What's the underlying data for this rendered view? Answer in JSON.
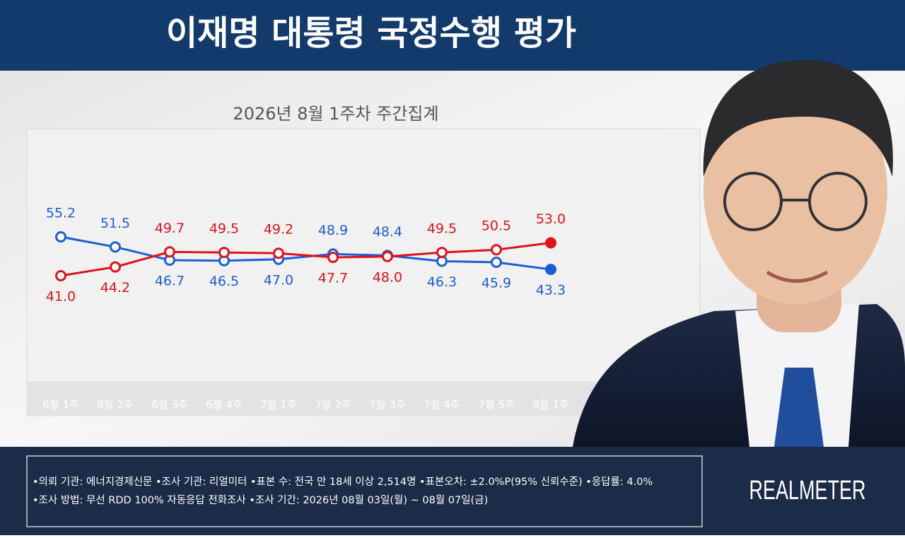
{
  "header": {
    "title": "이재명 대통령 국정수행 평가"
  },
  "chart_data": {
    "type": "line",
    "title": "2026년 8월 1주차 주간집계",
    "categories": [
      "6월 1주",
      "6월 2주",
      "6월 3주",
      "6월 4주",
      "7월 1주",
      "7월 2주",
      "7월 3주",
      "7월 4주",
      "7월 5주",
      "8월 1주"
    ],
    "series": [
      {
        "color": "#1c5fd4",
        "values": [
          55.2,
          51.5,
          46.7,
          46.5,
          47.0,
          48.9,
          48.4,
          46.3,
          45.9,
          43.3
        ],
        "value_labels": [
          "55.2",
          "51.5",
          "46.7",
          "46.5",
          "47.0",
          "48.9",
          "48.4",
          "46.3",
          "45.9",
          "43.3"
        ]
      },
      {
        "color": "#e0121c",
        "values": [
          41.0,
          44.2,
          49.7,
          49.5,
          49.2,
          47.7,
          48.0,
          49.5,
          50.5,
          53.0
        ],
        "value_labels": [
          "41.0",
          "44.2",
          "49.7",
          "49.5",
          "49.2",
          "47.7",
          "48.0",
          "49.5",
          "50.5",
          "53.0"
        ]
      }
    ]
  },
  "footer": {
    "lines": [
      "•의뢰 기관: 에너지경제신문 •조사 기관: 리얼미터 •표본 수: 전국 만 18세 이상 2,514명 •표본오차: ±2.0%P(95% 신뢰수준) •응답률: 4.0%",
      "•조사 방법: 무선 RDD 100% 자동응답 전화조사 •조사 기간: 2026년 08월 03일(월) ~ 08월 07일(금)"
    ],
    "brand": "REALMETER"
  }
}
